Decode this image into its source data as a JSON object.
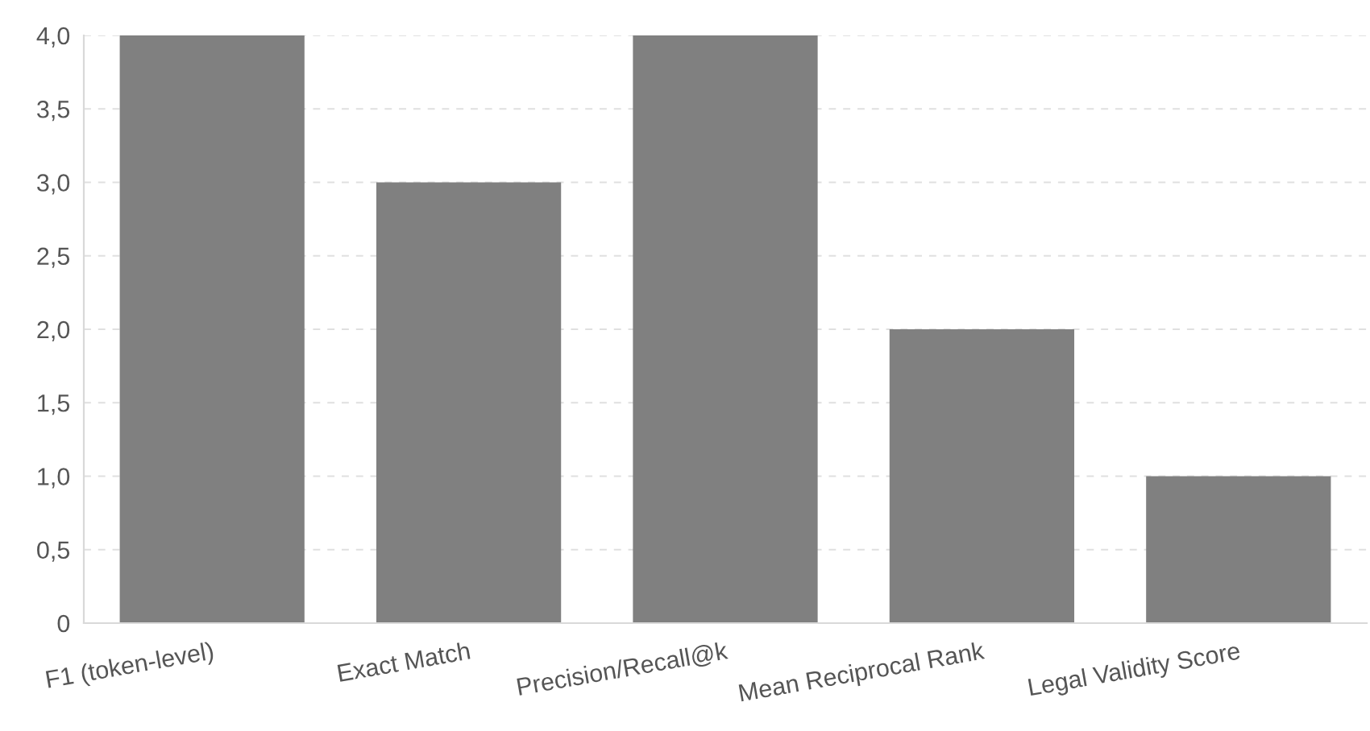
{
  "chart_data": {
    "type": "bar",
    "categories": [
      "F1 (token-level)",
      "Exact Match",
      "Precision/Recall@k",
      "Mean Reciprocal Rank",
      "Legal Validity Score"
    ],
    "values": [
      4,
      3,
      4,
      2,
      1
    ],
    "color": "#808080",
    "ylim": [
      0,
      4
    ],
    "yticks": [
      0,
      {
        "value": 0.5,
        "label": "0,5"
      },
      {
        "value": 1,
        "label": "1,0"
      },
      {
        "value": 1.5,
        "label": "1,5"
      },
      {
        "value": 2,
        "label": "2,0"
      },
      {
        "value": 2.5,
        "label": "2,5"
      },
      {
        "value": 3,
        "label": "3,0"
      },
      {
        "value": 3.5,
        "label": "3,5"
      },
      {
        "value": 4,
        "label": "4,0"
      }
    ],
    "grid": "y"
  }
}
